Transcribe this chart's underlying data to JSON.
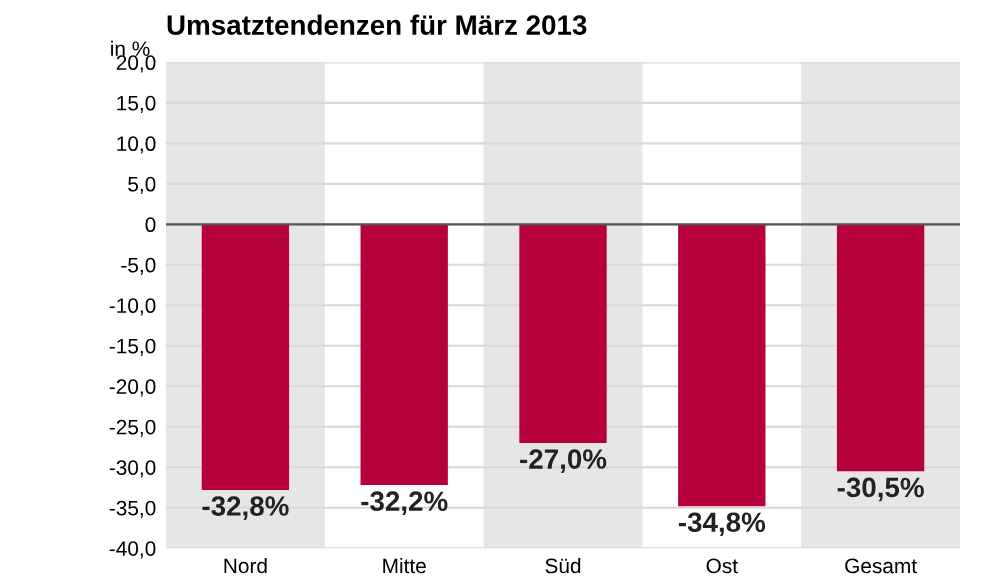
{
  "chart_data": {
    "type": "bar",
    "title": "Umsatztendenzen für März 2013",
    "ylabel": "in %",
    "categories": [
      "Nord",
      "Mitte",
      "Süd",
      "Ost",
      "Gesamt"
    ],
    "values": [
      -32.8,
      -32.2,
      -27.0,
      -34.8,
      -30.5
    ],
    "value_labels": [
      "-32,8%",
      "-32,2%",
      "-27,0%",
      "-34,8%",
      "-30,5%"
    ],
    "color": "#b5003a",
    "ylim": [
      -40,
      20
    ],
    "yticks": [
      {
        "value": 20,
        "label": "20,0"
      },
      {
        "value": 15,
        "label": "15,0"
      },
      {
        "value": 10,
        "label": "10,0"
      },
      {
        "value": 5,
        "label": "5,0"
      },
      {
        "value": 0,
        "label": "0"
      },
      {
        "value": -5,
        "label": "-5,0"
      },
      {
        "value": -10,
        "label": "-10,0"
      },
      {
        "value": -15,
        "label": "-15,0"
      },
      {
        "value": -20,
        "label": "-20,0"
      },
      {
        "value": -25,
        "label": "-25,0"
      },
      {
        "value": -30,
        "label": "-30,0"
      },
      {
        "value": -35,
        "label": "-35,0"
      },
      {
        "value": -40,
        "label": "-40,0"
      }
    ],
    "grid": "y",
    "legend": false
  }
}
